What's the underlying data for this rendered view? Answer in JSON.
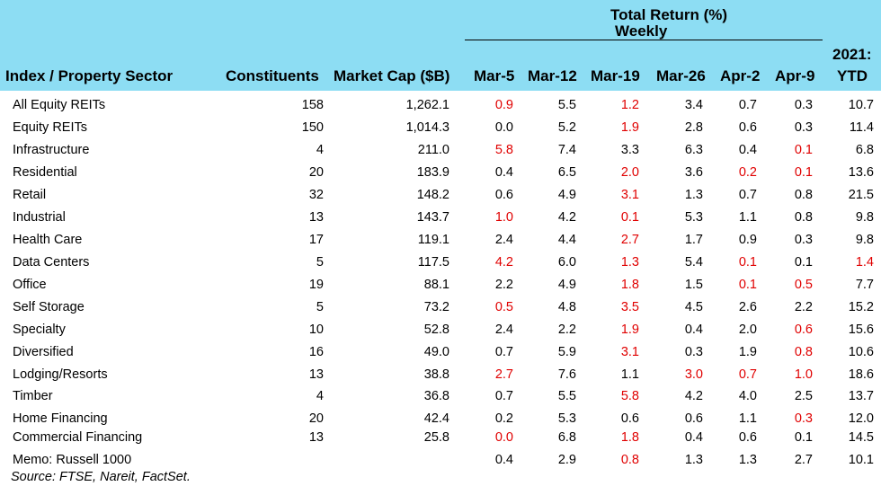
{
  "header": {
    "group_title": "Total Return (%)",
    "group_subtitle": "Weekly",
    "ytd_line1": "2021:",
    "ytd_line2": "YTD",
    "col_sector": "Index / Property Sector",
    "col_constituents": "Constituents",
    "col_marketcap": "Market Cap ($B)",
    "weeks": [
      "Mar-5",
      "Mar-12",
      "Mar-19",
      "Mar-26",
      "Apr-2",
      "Apr-9"
    ]
  },
  "colors": {
    "header_bg": "#8dddf3",
    "negative": "#e00000"
  },
  "rows": [
    {
      "name": "All Equity REITs",
      "constituents": "158",
      "mcap": "1,262.1",
      "w": [
        "0.9",
        "5.5",
        "1.2",
        "3.4",
        "0.7",
        "0.3"
      ],
      "neg": [
        true,
        false,
        true,
        false,
        false,
        false
      ],
      "ytd": "10.7",
      "ytd_neg": false
    },
    {
      "name": "Equity REITs",
      "constituents": "150",
      "mcap": "1,014.3",
      "w": [
        "0.0",
        "5.2",
        "1.9",
        "2.8",
        "0.6",
        "0.3"
      ],
      "neg": [
        false,
        false,
        true,
        false,
        false,
        false
      ],
      "ytd": "11.4",
      "ytd_neg": false
    },
    {
      "name": "Infrastructure",
      "constituents": "4",
      "mcap": "211.0",
      "w": [
        "5.8",
        "7.4",
        "3.3",
        "6.3",
        "0.4",
        "0.1"
      ],
      "neg": [
        true,
        false,
        false,
        false,
        false,
        true
      ],
      "ytd": "6.8",
      "ytd_neg": false
    },
    {
      "name": "Residential",
      "constituents": "20",
      "mcap": "183.9",
      "w": [
        "0.4",
        "6.5",
        "2.0",
        "3.6",
        "0.2",
        "0.1"
      ],
      "neg": [
        false,
        false,
        true,
        false,
        true,
        true
      ],
      "ytd": "13.6",
      "ytd_neg": false
    },
    {
      "name": "Retail",
      "constituents": "32",
      "mcap": "148.2",
      "w": [
        "0.6",
        "4.9",
        "3.1",
        "1.3",
        "0.7",
        "0.8"
      ],
      "neg": [
        false,
        false,
        true,
        false,
        false,
        false
      ],
      "ytd": "21.5",
      "ytd_neg": false
    },
    {
      "name": "Industrial",
      "constituents": "13",
      "mcap": "143.7",
      "w": [
        "1.0",
        "4.2",
        "0.1",
        "5.3",
        "1.1",
        "0.8"
      ],
      "neg": [
        true,
        false,
        true,
        false,
        false,
        false
      ],
      "ytd": "9.8",
      "ytd_neg": false
    },
    {
      "name": "Health Care",
      "constituents": "17",
      "mcap": "119.1",
      "w": [
        "2.4",
        "4.4",
        "2.7",
        "1.7",
        "0.9",
        "0.3"
      ],
      "neg": [
        false,
        false,
        true,
        false,
        false,
        false
      ],
      "ytd": "9.8",
      "ytd_neg": false
    },
    {
      "name": "Data Centers",
      "constituents": "5",
      "mcap": "117.5",
      "w": [
        "4.2",
        "6.0",
        "1.3",
        "5.4",
        "0.1",
        "0.1"
      ],
      "neg": [
        true,
        false,
        true,
        false,
        true,
        false
      ],
      "ytd": "1.4",
      "ytd_neg": true
    },
    {
      "name": "Office",
      "constituents": "19",
      "mcap": "88.1",
      "w": [
        "2.2",
        "4.9",
        "1.8",
        "1.5",
        "0.1",
        "0.5"
      ],
      "neg": [
        false,
        false,
        true,
        false,
        true,
        true
      ],
      "ytd": "7.7",
      "ytd_neg": false
    },
    {
      "name": "Self Storage",
      "constituents": "5",
      "mcap": "73.2",
      "w": [
        "0.5",
        "4.8",
        "3.5",
        "4.5",
        "2.6",
        "2.2"
      ],
      "neg": [
        true,
        false,
        true,
        false,
        false,
        false
      ],
      "ytd": "15.2",
      "ytd_neg": false
    },
    {
      "name": "Specialty",
      "constituents": "10",
      "mcap": "52.8",
      "w": [
        "2.4",
        "2.2",
        "1.9",
        "0.4",
        "2.0",
        "0.6"
      ],
      "neg": [
        false,
        false,
        true,
        false,
        false,
        true
      ],
      "ytd": "15.6",
      "ytd_neg": false
    },
    {
      "name": "Diversified",
      "constituents": "16",
      "mcap": "49.0",
      "w": [
        "0.7",
        "5.9",
        "3.1",
        "0.3",
        "1.9",
        "0.8"
      ],
      "neg": [
        false,
        false,
        true,
        false,
        false,
        true
      ],
      "ytd": "10.6",
      "ytd_neg": false
    },
    {
      "name": "Lodging/Resorts",
      "constituents": "13",
      "mcap": "38.8",
      "w": [
        "2.7",
        "7.6",
        "1.1",
        "3.0",
        "0.7",
        "1.0"
      ],
      "neg": [
        true,
        false,
        false,
        true,
        true,
        true
      ],
      "ytd": "18.6",
      "ytd_neg": false
    },
    {
      "name": "Timber",
      "constituents": "4",
      "mcap": "36.8",
      "w": [
        "0.7",
        "5.5",
        "5.8",
        "4.2",
        "4.0",
        "2.5"
      ],
      "neg": [
        false,
        false,
        true,
        false,
        false,
        false
      ],
      "ytd": "13.7",
      "ytd_neg": false
    },
    {
      "name": "Home Financing",
      "constituents": "20",
      "mcap": "42.4",
      "w": [
        "0.2",
        "5.3",
        "0.6",
        "0.6",
        "1.1",
        "0.3"
      ],
      "neg": [
        false,
        false,
        false,
        false,
        false,
        true
      ],
      "ytd": "12.0",
      "ytd_neg": false
    },
    {
      "name": "Commercial Financing",
      "constituents": "13",
      "mcap": "25.8",
      "w": [
        "0.0",
        "6.8",
        "1.8",
        "0.4",
        "0.6",
        "0.1"
      ],
      "neg": [
        true,
        false,
        true,
        false,
        false,
        false
      ],
      "ytd": "14.5",
      "ytd_neg": false
    },
    {
      "name": "Memo: Russell 1000",
      "constituents": "",
      "mcap": "",
      "w": [
        "0.4",
        "2.9",
        "0.8",
        "1.3",
        "1.3",
        "2.7"
      ],
      "neg": [
        false,
        false,
        true,
        false,
        false,
        false
      ],
      "ytd": "10.1",
      "ytd_neg": false
    }
  ],
  "source": "Source: FTSE, Nareit, FactSet."
}
